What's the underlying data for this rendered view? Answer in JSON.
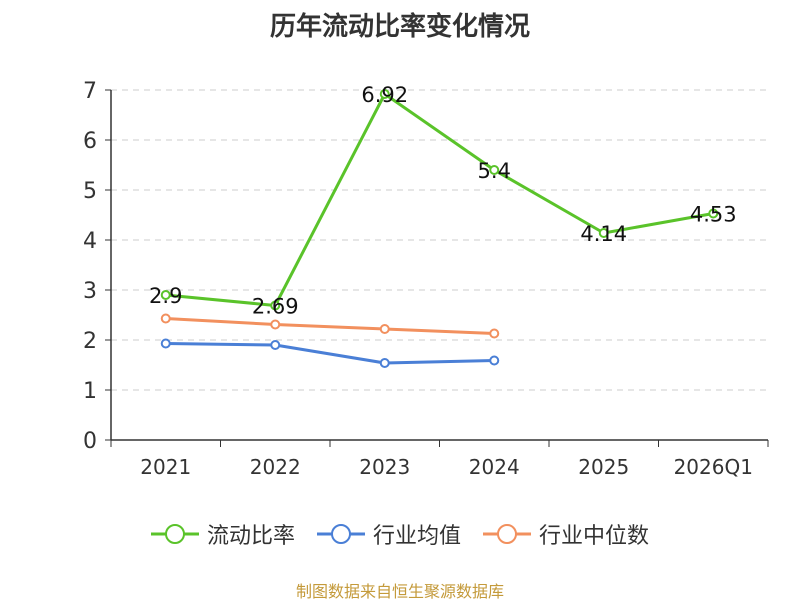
{
  "chart_data": {
    "type": "line",
    "title": "历年流动比率变化情况",
    "categories": [
      "2021",
      "2022",
      "2023",
      "2024",
      "2025",
      "2026Q1"
    ],
    "ylim": [
      0,
      7
    ],
    "yticks": [
      "0",
      "1",
      "2",
      "3",
      "4",
      "5",
      "6",
      "7"
    ],
    "grid": true,
    "legend_position": "bottom",
    "series": [
      {
        "name": "流动比率",
        "color": "#5ac32a",
        "values": [
          2.9,
          2.69,
          6.92,
          5.4,
          4.14,
          4.53
        ],
        "labels": [
          "2.9",
          "2.69",
          "6.92",
          "5.4",
          "4.14",
          "4.53"
        ],
        "show_labels": true
      },
      {
        "name": "行业均值",
        "color": "#4a7fd6",
        "values": [
          1.93,
          1.9,
          1.54,
          1.59,
          null,
          null
        ],
        "show_labels": false
      },
      {
        "name": "行业中位数",
        "color": "#f2905e",
        "values": [
          2.43,
          2.31,
          2.22,
          2.13,
          null,
          null
        ],
        "show_labels": false
      }
    ]
  },
  "source_text": "制图数据来自恒生聚源数据库"
}
